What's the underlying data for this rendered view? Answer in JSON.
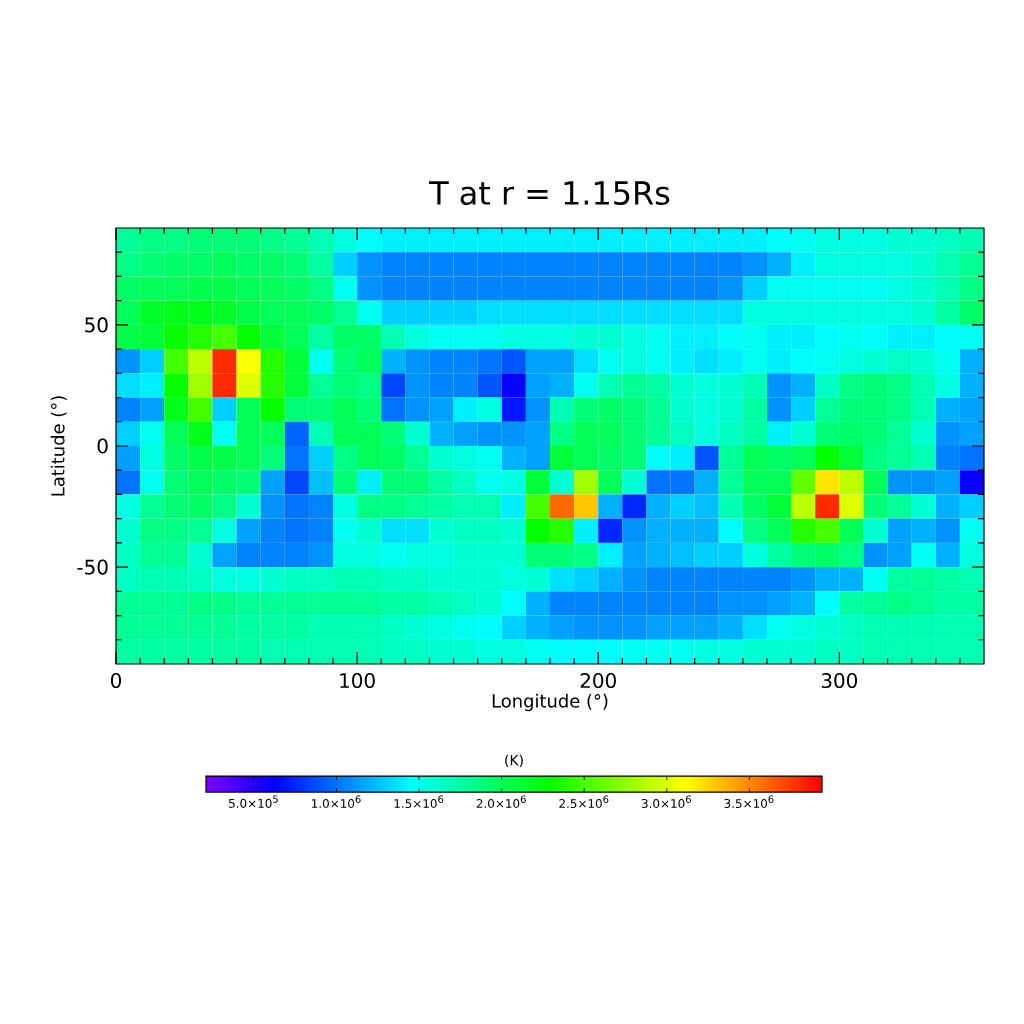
{
  "chart_data": {
    "type": "heatmap",
    "title": "T at r = 1.15Rs",
    "xlabel": "Longitude (°)",
    "ylabel": "Latitude (°)",
    "clabel": "(K)",
    "x": [
      5,
      15,
      25,
      35,
      45,
      55,
      65,
      75,
      85,
      95,
      105,
      115,
      125,
      135,
      145,
      155,
      165,
      175,
      185,
      195,
      205,
      215,
      225,
      235,
      245,
      255,
      265,
      275,
      285,
      295,
      305,
      315,
      325,
      335,
      345,
      355
    ],
    "y": [
      85,
      75,
      65,
      55,
      45,
      35,
      25,
      15,
      5,
      -5,
      -15,
      -25,
      -35,
      -45,
      -55,
      -65,
      -75,
      -85
    ],
    "cells": [
      [
        1800000.0,
        1850000.0,
        1850000.0,
        1900000.0,
        1900000.0,
        1900000.0,
        1850000.0,
        1800000.0,
        1700000.0,
        1550000.0,
        1450000.0,
        1400000.0,
        1400000.0,
        1400000.0,
        1400000.0,
        1400000.0,
        1400000.0,
        1400000.0,
        1400000.0,
        1400000.0,
        1400000.0,
        1400000.0,
        1400000.0,
        1400000.0,
        1400000.0,
        1400000.0,
        1400000.0,
        1450000.0,
        1500000.0,
        1550000.0,
        1550000.0,
        1550000.0,
        1600000.0,
        1600000.0,
        1650000.0,
        1700000.0
      ],
      [
        1850000.0,
        1900000.0,
        1950000.0,
        1950000.0,
        2000000.0,
        1950000.0,
        1950000.0,
        1900000.0,
        1750000.0,
        1300000.0,
        1100000.0,
        1050000.0,
        1050000.0,
        1050000.0,
        1050000.0,
        1050000.0,
        1050000.0,
        1050000.0,
        1050000.0,
        1050000.0,
        1050000.0,
        1050000.0,
        1050000.0,
        1050000.0,
        1050000.0,
        1050000.0,
        1100000.0,
        1200000.0,
        1400000.0,
        1550000.0,
        1550000.0,
        1550000.0,
        1550000.0,
        1600000.0,
        1700000.0,
        1800000.0
      ],
      [
        1950000.0,
        2000000.0,
        2000000.0,
        2050000.0,
        2050000.0,
        2000000.0,
        2000000.0,
        1950000.0,
        1850000.0,
        1500000.0,
        1100000.0,
        1050000.0,
        1050000.0,
        1050000.0,
        1050000.0,
        1050000.0,
        1050000.0,
        1050000.0,
        1050000.0,
        1050000.0,
        1050000.0,
        1050000.0,
        1050000.0,
        1050000.0,
        1050000.0,
        1100000.0,
        1300000.0,
        1500000.0,
        1500000.0,
        1500000.0,
        1500000.0,
        1500000.0,
        1550000.0,
        1600000.0,
        1700000.0,
        1850000.0
      ],
      [
        2000000.0,
        2150000.0,
        2200000.0,
        2200000.0,
        2150000.0,
        2050000.0,
        2000000.0,
        2000000.0,
        1950000.0,
        1800000.0,
        1500000.0,
        1300000.0,
        1300000.0,
        1300000.0,
        1300000.0,
        1350000.0,
        1350000.0,
        1350000.0,
        1350000.0,
        1350000.0,
        1350000.0,
        1350000.0,
        1350000.0,
        1350000.0,
        1350000.0,
        1350000.0,
        1550000.0,
        1550000.0,
        1550000.0,
        1550000.0,
        1550000.0,
        1550000.0,
        1550000.0,
        1600000.0,
        1750000.0,
        1950000.0
      ],
      [
        2050000.0,
        2100000.0,
        2300000.0,
        2400000.0,
        2500000.0,
        2300000.0,
        2100000.0,
        2000000.0,
        1750000.0,
        1950000.0,
        1950000.0,
        1700000.0,
        1550000.0,
        1500000.0,
        1500000.0,
        1500000.0,
        1550000.0,
        1550000.0,
        1550000.0,
        1600000.0,
        1600000.0,
        1550000.0,
        1500000.0,
        1400000.0,
        1400000.0,
        1450000.0,
        1500000.0,
        1400000.0,
        1400000.0,
        1450000.0,
        1500000.0,
        1450000.0,
        1400000.0,
        1400000.0,
        1450000.0,
        1500000.0
      ],
      [
        1100000.0,
        1300000.0,
        2500000.0,
        2900000.0,
        3800000.0,
        3100000.0,
        2400000.0,
        2100000.0,
        1500000.0,
        1900000.0,
        2000000.0,
        1200000.0,
        1100000.0,
        1050000.0,
        1050000.0,
        1000000.0,
        900000.0,
        1150000.0,
        1150000.0,
        1350000.0,
        1500000.0,
        1550000.0,
        1500000.0,
        1400000.0,
        1350000.0,
        1400000.0,
        1500000.0,
        1400000.0,
        1450000.0,
        1500000.0,
        1550000.0,
        1600000.0,
        1650000.0,
        1600000.0,
        1500000.0,
        1200000.0
      ],
      [
        1350000.0,
        1400000.0,
        2300000.0,
        2800000.0,
        3800000.0,
        3000000.0,
        2400000.0,
        2100000.0,
        1800000.0,
        1900000.0,
        1850000.0,
        850000.0,
        1100000.0,
        1050000.0,
        1050000.0,
        900000.0,
        600000.0,
        1150000.0,
        1200000.0,
        1500000.0,
        1700000.0,
        1800000.0,
        1750000.0,
        1600000.0,
        1550000.0,
        1600000.0,
        1700000.0,
        1100000.0,
        1200000.0,
        1650000.0,
        1850000.0,
        1900000.0,
        1850000.0,
        1700000.0,
        1550000.0,
        1200000.0
      ],
      [
        1050000.0,
        1150000.0,
        2200000.0,
        2500000.0,
        1300000.0,
        2000000.0,
        2300000.0,
        1900000.0,
        1900000.0,
        2000000.0,
        1900000.0,
        1000000.0,
        1100000.0,
        1150000.0,
        1400000.0,
        1550000.0,
        700000.0,
        1100000.0,
        1700000.0,
        1900000.0,
        1950000.0,
        1900000.0,
        1800000.0,
        1600000.0,
        1550000.0,
        1600000.0,
        1750000.0,
        1100000.0,
        1300000.0,
        1800000.0,
        1900000.0,
        1900000.0,
        1850000.0,
        1700000.0,
        1200000.0,
        1150000.0
      ],
      [
        1300000.0,
        1500000.0,
        2000000.0,
        2200000.0,
        1500000.0,
        2000000.0,
        2000000.0,
        950000.0,
        1700000.0,
        2000000.0,
        2000000.0,
        1900000.0,
        1600000.0,
        1200000.0,
        1150000.0,
        1100000.0,
        1100000.0,
        1150000.0,
        1850000.0,
        2000000.0,
        2000000.0,
        1900000.0,
        1800000.0,
        1650000.0,
        1550000.0,
        1650000.0,
        1750000.0,
        1400000.0,
        1600000.0,
        1900000.0,
        1950000.0,
        1900000.0,
        1800000.0,
        1600000.0,
        1100000.0,
        1150000.0
      ],
      [
        1150000.0,
        1550000.0,
        1950000.0,
        2050000.0,
        2050000.0,
        2000000.0,
        1900000.0,
        1000000.0,
        1300000.0,
        1850000.0,
        2000000.0,
        1950000.0,
        1800000.0,
        1600000.0,
        1550000.0,
        1500000.0,
        1200000.0,
        1150000.0,
        2100000.0,
        2000000.0,
        1950000.0,
        1900000.0,
        1450000.0,
        1400000.0,
        900000.0,
        1800000.0,
        2000000.0,
        1950000.0,
        2000000.0,
        2300000.0,
        2100000.0,
        1850000.0,
        1800000.0,
        1700000.0,
        1050000.0,
        1000000.0
      ],
      [
        1000000.0,
        1500000.0,
        1900000.0,
        2000000.0,
        1950000.0,
        1900000.0,
        1150000.0,
        850000.0,
        1250000.0,
        1900000.0,
        1400000.0,
        1900000.0,
        1900000.0,
        1750000.0,
        1650000.0,
        1500000.0,
        1550000.0,
        2100000.0,
        1600000.0,
        2800000.0,
        2000000.0,
        1600000.0,
        1000000.0,
        1000000.0,
        1200000.0,
        1800000.0,
        2000000.0,
        2000000.0,
        2600000.0,
        3200000.0,
        2900000.0,
        2000000.0,
        1100000.0,
        1100000.0,
        1150000.0,
        600000.0
      ],
      [
        1550000.0,
        1800000.0,
        1900000.0,
        1950000.0,
        1850000.0,
        1600000.0,
        1100000.0,
        1000000.0,
        1050000.0,
        1550000.0,
        1850000.0,
        1850000.0,
        1800000.0,
        1750000.0,
        1700000.0,
        1700000.0,
        1400000.0,
        2500000.0,
        3600000.0,
        3300000.0,
        1200000.0,
        750000.0,
        1200000.0,
        1300000.0,
        1250000.0,
        1700000.0,
        1950000.0,
        2100000.0,
        2900000.0,
        3800000.0,
        3000000.0,
        1900000.0,
        1800000.0,
        1600000.0,
        1200000.0,
        1300000.0
      ],
      [
        1600000.0,
        1850000.0,
        1850000.0,
        1800000.0,
        1550000.0,
        1150000.0,
        1050000.0,
        1000000.0,
        1050000.0,
        1500000.0,
        1600000.0,
        1350000.0,
        1350000.0,
        1600000.0,
        1650000.0,
        1650000.0,
        1600000.0,
        2300000.0,
        2400000.0,
        1400000.0,
        750000.0,
        1100000.0,
        1200000.0,
        1200000.0,
        1200000.0,
        1450000.0,
        1850000.0,
        2000000.0,
        2400000.0,
        2500000.0,
        2000000.0,
        1600000.0,
        1150000.0,
        1200000.0,
        1100000.0,
        1500000.0
      ],
      [
        1650000.0,
        1800000.0,
        1800000.0,
        1600000.0,
        1150000.0,
        1050000.0,
        1050000.0,
        1050000.0,
        1100000.0,
        1550000.0,
        1550000.0,
        1500000.0,
        1550000.0,
        1550000.0,
        1600000.0,
        1600000.0,
        1600000.0,
        1900000.0,
        1900000.0,
        1850000.0,
        1400000.0,
        1150000.0,
        1200000.0,
        1250000.0,
        1300000.0,
        1300000.0,
        1550000.0,
        1750000.0,
        1900000.0,
        1950000.0,
        1850000.0,
        1100000.0,
        1150000.0,
        1500000.0,
        1200000.0,
        1550000.0
      ],
      [
        1650000.0,
        1700000.0,
        1700000.0,
        1650000.0,
        1550000.0,
        1550000.0,
        1600000.0,
        1650000.0,
        1650000.0,
        1700000.0,
        1700000.0,
        1650000.0,
        1650000.0,
        1600000.0,
        1600000.0,
        1600000.0,
        1550000.0,
        1600000.0,
        1350000.0,
        1300000.0,
        1200000.0,
        1100000.0,
        1050000.0,
        1050000.0,
        1050000.0,
        1050000.0,
        1050000.0,
        1050000.0,
        1100000.0,
        1200000.0,
        1200000.0,
        1500000.0,
        1750000.0,
        1800000.0,
        1750000.0,
        1700000.0
      ],
      [
        1800000.0,
        1800000.0,
        1800000.0,
        1850000.0,
        1850000.0,
        1800000.0,
        1800000.0,
        1800000.0,
        1800000.0,
        1800000.0,
        1800000.0,
        1750000.0,
        1750000.0,
        1700000.0,
        1650000.0,
        1600000.0,
        1450000.0,
        1200000.0,
        1050000.0,
        1050000.0,
        1050000.0,
        1050000.0,
        1050000.0,
        1050000.0,
        1050000.0,
        1100000.0,
        1100000.0,
        1150000.0,
        1200000.0,
        1450000.0,
        1750000.0,
        1800000.0,
        1850000.0,
        1800000.0,
        1750000.0,
        1750000.0
      ],
      [
        1800000.0,
        1800000.0,
        1800000.0,
        1800000.0,
        1800000.0,
        1750000.0,
        1750000.0,
        1750000.0,
        1700000.0,
        1700000.0,
        1700000.0,
        1650000.0,
        1600000.0,
        1550000.0,
        1500000.0,
        1450000.0,
        1300000.0,
        1200000.0,
        1150000.0,
        1100000.0,
        1100000.0,
        1100000.0,
        1150000.0,
        1150000.0,
        1150000.0,
        1200000.0,
        1350000.0,
        1500000.0,
        1550000.0,
        1600000.0,
        1650000.0,
        1700000.0,
        1700000.0,
        1700000.0,
        1700000.0,
        1700000.0
      ],
      [
        1750000.0,
        1750000.0,
        1750000.0,
        1750000.0,
        1750000.0,
        1750000.0,
        1700000.0,
        1700000.0,
        1700000.0,
        1700000.0,
        1700000.0,
        1650000.0,
        1650000.0,
        1600000.0,
        1600000.0,
        1550000.0,
        1550000.0,
        1500000.0,
        1450000.0,
        1450000.0,
        1450000.0,
        1500000.0,
        1500000.0,
        1500000.0,
        1550000.0,
        1550000.0,
        1600000.0,
        1600000.0,
        1600000.0,
        1650000.0,
        1650000.0,
        1700000.0,
        1700000.0,
        1700000.0,
        1700000.0,
        1700000.0
      ]
    ],
    "xlim": [
      0,
      360
    ],
    "ylim": [
      -90,
      90
    ],
    "xticks": [
      0,
      {
        "value": 10,
        "label": null
      },
      {
        "value": 20,
        "label": null
      },
      {
        "value": 30,
        "label": null
      },
      {
        "value": 40,
        "label": null
      },
      {
        "value": 50,
        "label": null
      },
      {
        "value": 60,
        "label": null
      },
      {
        "value": 70,
        "label": null
      },
      {
        "value": 80,
        "label": null
      },
      {
        "value": 90,
        "label": null
      },
      100,
      {
        "value": 110,
        "label": null
      },
      {
        "value": 120,
        "label": null
      },
      {
        "value": 130,
        "label": null
      },
      {
        "value": 140,
        "label": null
      },
      {
        "value": 150,
        "label": null
      },
      {
        "value": 160,
        "label": null
      },
      {
        "value": 170,
        "label": null
      },
      {
        "value": 180,
        "label": null
      },
      {
        "value": 190,
        "label": null
      },
      200,
      {
        "value": 210,
        "label": null
      },
      {
        "value": 220,
        "label": null
      },
      {
        "value": 230,
        "label": null
      },
      {
        "value": 240,
        "label": null
      },
      {
        "value": 250,
        "label": null
      },
      {
        "value": 260,
        "label": null
      },
      {
        "value": 270,
        "label": null
      },
      {
        "value": 280,
        "label": null
      },
      {
        "value": 290,
        "label": null
      },
      300,
      {
        "value": 310,
        "label": null
      },
      {
        "value": 320,
        "label": null
      },
      {
        "value": 330,
        "label": null
      },
      {
        "value": 340,
        "label": null
      },
      {
        "value": 350,
        "label": null
      }
    ],
    "yticks": [
      {
        "value": -80,
        "label": null
      },
      {
        "value": -70,
        "label": null
      },
      {
        "value": -60,
        "label": null
      },
      -50,
      {
        "value": -40,
        "label": null
      },
      {
        "value": -30,
        "label": null
      },
      {
        "value": -20,
        "label": null
      },
      {
        "value": -10,
        "label": null
      },
      0,
      {
        "value": 10,
        "label": null
      },
      {
        "value": 20,
        "label": null
      },
      {
        "value": 30,
        "label": null
      },
      {
        "value": 40,
        "label": null
      },
      50,
      {
        "value": 60,
        "label": null
      },
      {
        "value": 70,
        "label": null
      },
      {
        "value": 80,
        "label": null
      }
    ],
    "clim": [
      210000,
      3940000
    ],
    "cticks": [
      {
        "value": 500000,
        "label": "5.0×10$^{5}$"
      },
      {
        "value": 1000000,
        "label": "1.0×10$^{6}$"
      },
      {
        "value": 1500000,
        "label": "1.5×10$^{6}$"
      },
      {
        "value": 2000000,
        "label": "2.0×10$^{6}$"
      },
      {
        "value": 2500000,
        "label": "2.5×10$^{6}$"
      },
      {
        "value": 3000000,
        "label": "3.0×10$^{6}$"
      },
      {
        "value": 3500000,
        "label": "3.5×10$^{6}$"
      }
    ]
  }
}
